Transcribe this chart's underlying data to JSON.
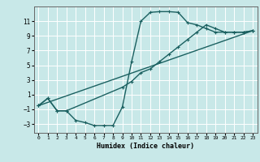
{
  "xlabel": "Humidex (Indice chaleur)",
  "bg_color": "#c8e8e8",
  "grid_color": "#ffffff",
  "line_color": "#1a6060",
  "markersize": 3,
  "linewidth": 1.0,
  "xlim": [
    -0.5,
    23.5
  ],
  "ylim": [
    -4.2,
    13.0
  ],
  "xticks": [
    0,
    1,
    2,
    3,
    4,
    5,
    6,
    7,
    8,
    9,
    10,
    11,
    12,
    13,
    14,
    15,
    16,
    17,
    18,
    19,
    20,
    21,
    22,
    23
  ],
  "yticks": [
    -3,
    -1,
    1,
    3,
    5,
    7,
    9,
    11
  ],
  "line1_x": [
    0,
    1,
    2,
    3,
    4,
    5,
    6,
    7,
    8,
    9,
    10,
    11,
    12,
    13,
    14,
    15,
    16,
    17,
    18,
    19,
    20,
    21,
    22,
    23
  ],
  "line1_y": [
    -0.5,
    0.5,
    -1.2,
    -1.2,
    -2.5,
    -2.8,
    -3.2,
    -3.2,
    -3.2,
    -0.7,
    5.5,
    11.0,
    12.2,
    12.3,
    12.3,
    12.2,
    10.8,
    10.5,
    10.0,
    9.5,
    9.5,
    9.5,
    9.5,
    9.7
  ],
  "line2_x": [
    0,
    1,
    2,
    3,
    9,
    10,
    11,
    12,
    13,
    14,
    15,
    16,
    17,
    18,
    19,
    20,
    21,
    22,
    23
  ],
  "line2_y": [
    -0.5,
    0.5,
    -1.2,
    -1.2,
    2.0,
    2.8,
    4.0,
    4.5,
    5.5,
    6.5,
    7.5,
    8.5,
    9.5,
    10.5,
    10.0,
    9.5,
    9.5,
    9.5,
    9.7
  ],
  "line3_x": [
    0,
    23
  ],
  "line3_y": [
    -0.5,
    9.7
  ]
}
